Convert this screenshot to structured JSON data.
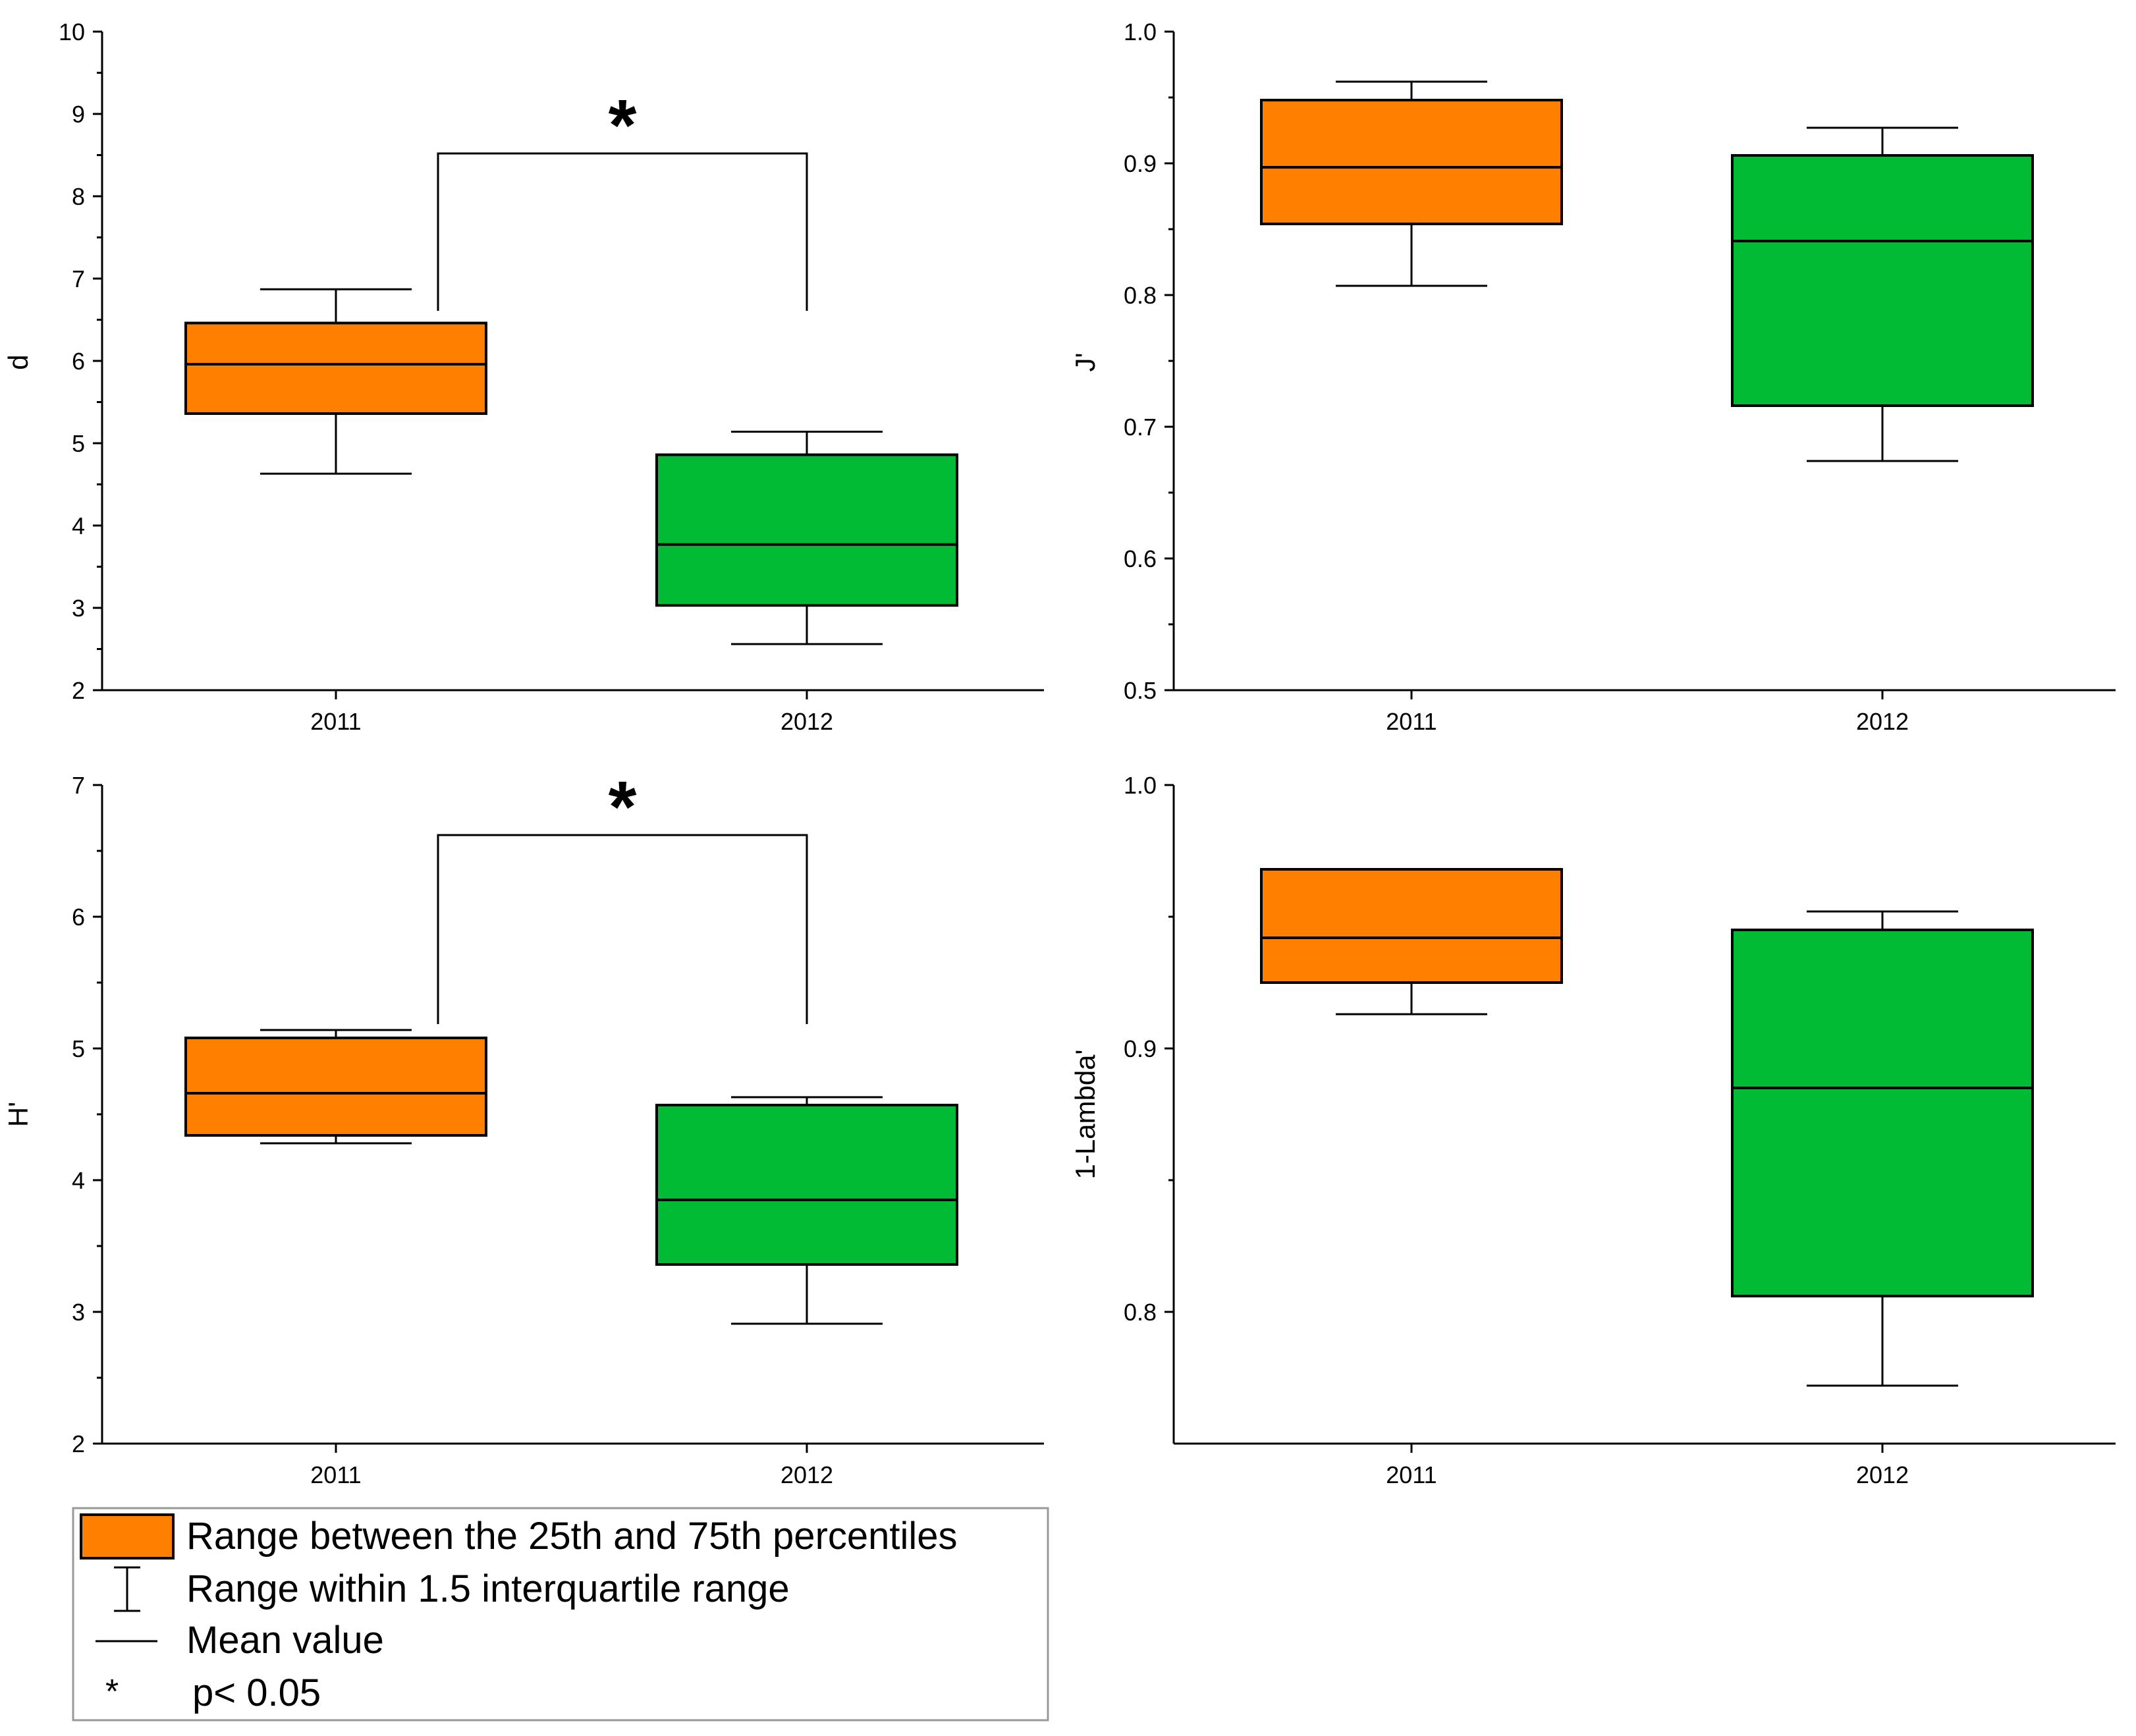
{
  "colors": {
    "orange": "#ff8000",
    "green": "#00bb33",
    "axis": "#000000",
    "legend_border": "#999999"
  },
  "chart_data": [
    {
      "id": "d",
      "type": "box",
      "ylabel": "d",
      "ylim": [
        2,
        10
      ],
      "yticks": [
        "2",
        "3",
        "4",
        "5",
        "6",
        "7",
        "8",
        "9",
        "10"
      ],
      "categories": [
        "2011",
        "2012"
      ],
      "boxes": [
        {
          "category": "2011",
          "color": "orange",
          "whisker_low": 4.63,
          "q1": 5.36,
          "mean": 5.96,
          "q3": 6.46,
          "whisker_high": 6.87
        },
        {
          "category": "2012",
          "color": "green",
          "whisker_low": 2.56,
          "q1": 3.03,
          "mean": 3.77,
          "q3": 4.86,
          "whisker_high": 5.14
        }
      ],
      "significance": {
        "label": "*",
        "y": 8.52,
        "from": "2011",
        "to": "2012"
      }
    },
    {
      "id": "J",
      "type": "box",
      "ylabel": "J'",
      "ylim": [
        0.5,
        1.0
      ],
      "yticks": [
        "0.5",
        "0.6",
        "0.7",
        "0.8",
        "0.9",
        "1.0"
      ],
      "categories": [
        "2011",
        "2012"
      ],
      "boxes": [
        {
          "category": "2011",
          "color": "orange",
          "whisker_low": 0.807,
          "q1": 0.854,
          "mean": 0.897,
          "q3": 0.948,
          "whisker_high": 0.962
        },
        {
          "category": "2012",
          "color": "green",
          "whisker_low": 0.674,
          "q1": 0.716,
          "mean": 0.841,
          "q3": 0.906,
          "whisker_high": 0.927
        }
      ]
    },
    {
      "id": "H",
      "type": "box",
      "ylabel": "H'",
      "ylim": [
        2,
        7
      ],
      "yticks": [
        "2",
        "3",
        "4",
        "5",
        "6",
        "7"
      ],
      "categories": [
        "2011",
        "2012"
      ],
      "boxes": [
        {
          "category": "2011",
          "color": "orange",
          "whisker_low": 4.28,
          "q1": 4.34,
          "mean": 4.66,
          "q3": 5.08,
          "whisker_high": 5.14
        },
        {
          "category": "2012",
          "color": "green",
          "whisker_low": 2.91,
          "q1": 3.36,
          "mean": 3.85,
          "q3": 4.57,
          "whisker_high": 4.63
        }
      ],
      "significance": {
        "label": "*",
        "y": 6.62,
        "from": "2011",
        "to": "2012"
      }
    },
    {
      "id": "lambda",
      "type": "box",
      "ylabel": "1-Lambda'",
      "ylim": [
        0.75,
        1.0
      ],
      "yticks": [
        "0.8",
        "0.9",
        "1.0"
      ],
      "categories": [
        "2011",
        "2012"
      ],
      "boxes": [
        {
          "category": "2011",
          "color": "orange",
          "whisker_low": 0.913,
          "q1": 0.925,
          "mean": 0.942,
          "q3": 0.968,
          "whisker_high": 0.968
        },
        {
          "category": "2012",
          "color": "green",
          "whisker_low": 0.772,
          "q1": 0.806,
          "mean": 0.885,
          "q3": 0.945,
          "whisker_high": 0.952
        }
      ]
    }
  ],
  "legend": {
    "items": [
      {
        "symbol": "box",
        "label": "Range between the 25th and 75th percentiles"
      },
      {
        "symbol": "whisker",
        "label": "Range within 1.5 interquartile range"
      },
      {
        "symbol": "line",
        "label": "Mean value"
      },
      {
        "symbol": "star",
        "marker": "*",
        "label": "p< 0.05"
      }
    ]
  }
}
